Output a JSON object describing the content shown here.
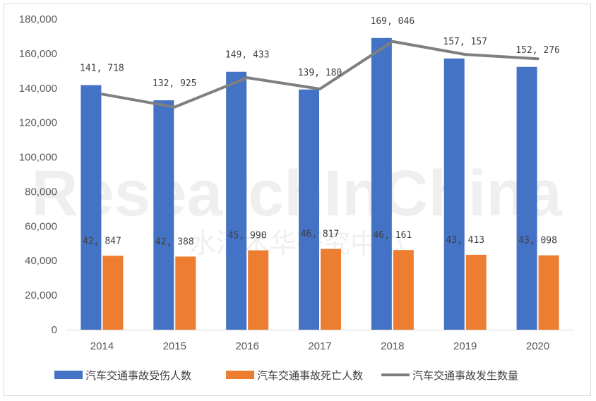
{
  "chart_data": {
    "type": "bar",
    "categories": [
      "2014",
      "2015",
      "2016",
      "2017",
      "2018",
      "2019",
      "2020"
    ],
    "series": [
      {
        "name": "汽车交通事故受伤人数",
        "type": "bar",
        "color": "#4472c4",
        "values": [
          141718,
          132925,
          149433,
          139180,
          169046,
          157157,
          152276
        ],
        "labels": [
          "141,718",
          "132,925",
          "149,433",
          "139,180",
          "169,046",
          "157,157",
          "152,276"
        ]
      },
      {
        "name": "汽车交通事故死亡人数",
        "type": "bar",
        "color": "#ed7d31",
        "values": [
          42847,
          42388,
          45990,
          46817,
          46161,
          43413,
          43098
        ],
        "labels": [
          "42,847",
          "42,388",
          "45,990",
          "46,817",
          "46,161",
          "43,413",
          "43,098"
        ]
      },
      {
        "name": "汽车交通事故发生数量",
        "type": "line",
        "color": "#7f7f7f",
        "values": [
          136500,
          129000,
          146000,
          139500,
          167000,
          159500,
          157000
        ]
      }
    ],
    "y_ticks": [
      "0",
      "20,000",
      "40,000",
      "60,000",
      "80,000",
      "100,000",
      "120,000",
      "140,000",
      "160,000",
      "180,000"
    ],
    "ylim": [
      0,
      180000
    ],
    "legend_position": "bottom",
    "grid": false
  },
  "watermark": {
    "line1": "ResearchInChina",
    "line2": "水清木华研究中心"
  }
}
